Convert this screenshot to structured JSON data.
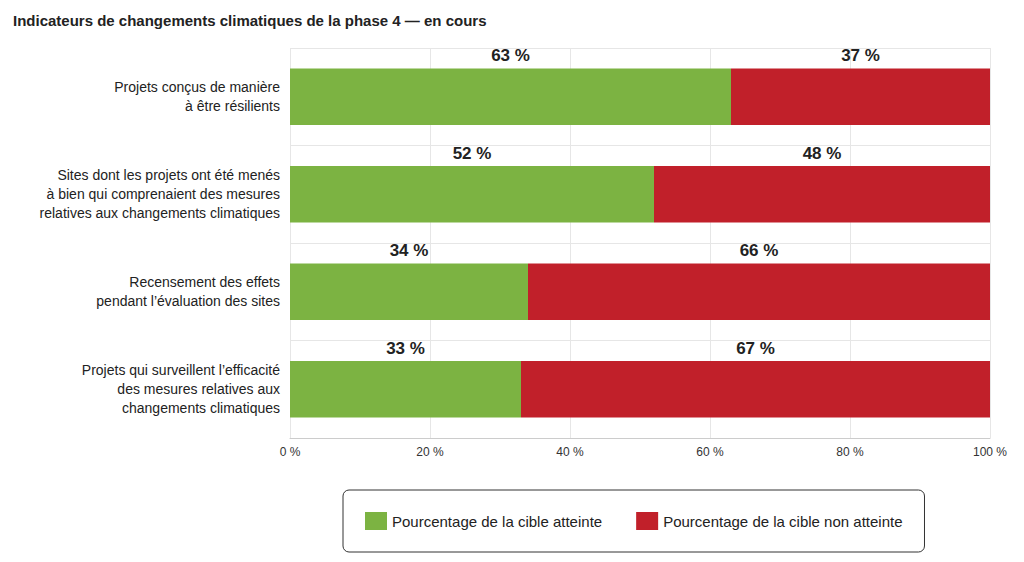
{
  "chart_data": {
    "type": "bar",
    "title": "Indicateurs de changements climatiques de la phase 4 — en cours",
    "orientation": "horizontal",
    "stacked": true,
    "data_labels": true,
    "grid": true,
    "legend": "bottom",
    "categories": [
      "Projets conçus de manière\nà être résilients",
      "Sites dont les projets ont été menés\nà bien qui comprenaient des mesures\nrelatives aux changements climatiques",
      "Recensement des effets\npendant l’évaluation des sites",
      "Projets qui surveillent l’efficacité\ndes mesures relatives aux\nchangements climatiques"
    ],
    "series": [
      {
        "name": "Pourcentage de la cible atteinte",
        "color": "#7cb342",
        "values": [
          63,
          52,
          34,
          33
        ],
        "value_labels": [
          "63 %",
          "52 %",
          "34 %",
          "33 %"
        ]
      },
      {
        "name": "Pourcentage de la cible non atteinte",
        "color": "#c1202a",
        "values": [
          37,
          48,
          66,
          67
        ],
        "value_labels": [
          "37 %",
          "48 %",
          "66 %",
          "67 %"
        ]
      }
    ],
    "xlim": [
      0,
      100
    ],
    "xticks": [
      {
        "value": 0,
        "label": "0 %"
      },
      {
        "value": 20,
        "label": "20 %"
      },
      {
        "value": 40,
        "label": "40 %"
      },
      {
        "value": 60,
        "label": "60 %"
      },
      {
        "value": 80,
        "label": "80 %"
      },
      {
        "value": 100,
        "label": "100 %"
      }
    ]
  }
}
